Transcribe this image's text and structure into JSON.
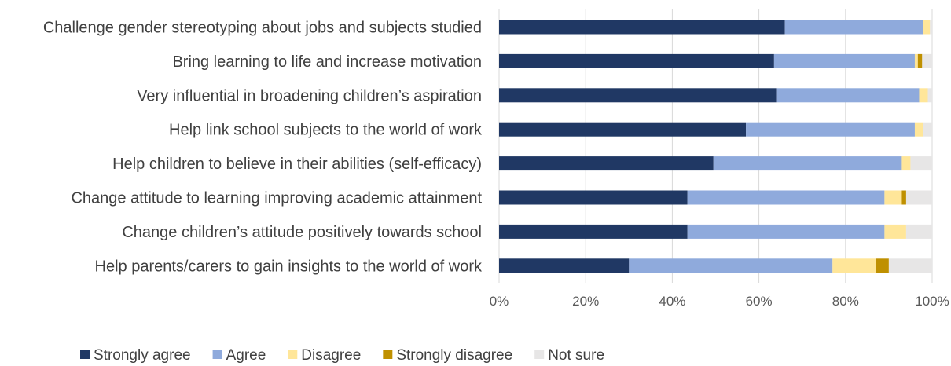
{
  "chart_data": {
    "type": "bar",
    "orientation": "horizontal",
    "stacked": true,
    "percent": true,
    "categories": [
      "Challenge gender stereotyping about jobs and subjects studied",
      "Bring learning to life and increase motivation",
      "Very influential in broadening children’s aspiration",
      "Help link school subjects to the world of work",
      "Help children to believe in their abilities (self-efficacy)",
      "Change attitude to learning improving academic attainment",
      "Change children’s attitude positively towards school",
      "Help parents/carers to gain insights to the world of work"
    ],
    "series": [
      {
        "name": "Strongly agree",
        "color": "#203864",
        "values": [
          66,
          63.5,
          64,
          57,
          49.5,
          43.5,
          43.5,
          30
        ]
      },
      {
        "name": "Agree",
        "color": "#8faadc",
        "values": [
          32,
          32.5,
          33,
          39,
          43.5,
          45.5,
          45.5,
          47
        ]
      },
      {
        "name": "Disagree",
        "color": "#ffe699",
        "values": [
          1.5,
          0.7,
          2,
          2,
          2,
          4,
          5,
          10
        ]
      },
      {
        "name": "Strongly disagree",
        "color": "#bf9000",
        "values": [
          0,
          1,
          0,
          0,
          0,
          1,
          0,
          3
        ]
      },
      {
        "name": "Not sure",
        "color": "#e7e6e6",
        "values": [
          0.5,
          2.3,
          1,
          2,
          5,
          6,
          6,
          10
        ]
      }
    ],
    "x_ticks": [
      "0%",
      "20%",
      "40%",
      "60%",
      "80%",
      "100%"
    ],
    "xlim": [
      0,
      100
    ],
    "grid": true,
    "legend": "bottom-left",
    "title": "",
    "xlabel": "",
    "ylabel": ""
  }
}
